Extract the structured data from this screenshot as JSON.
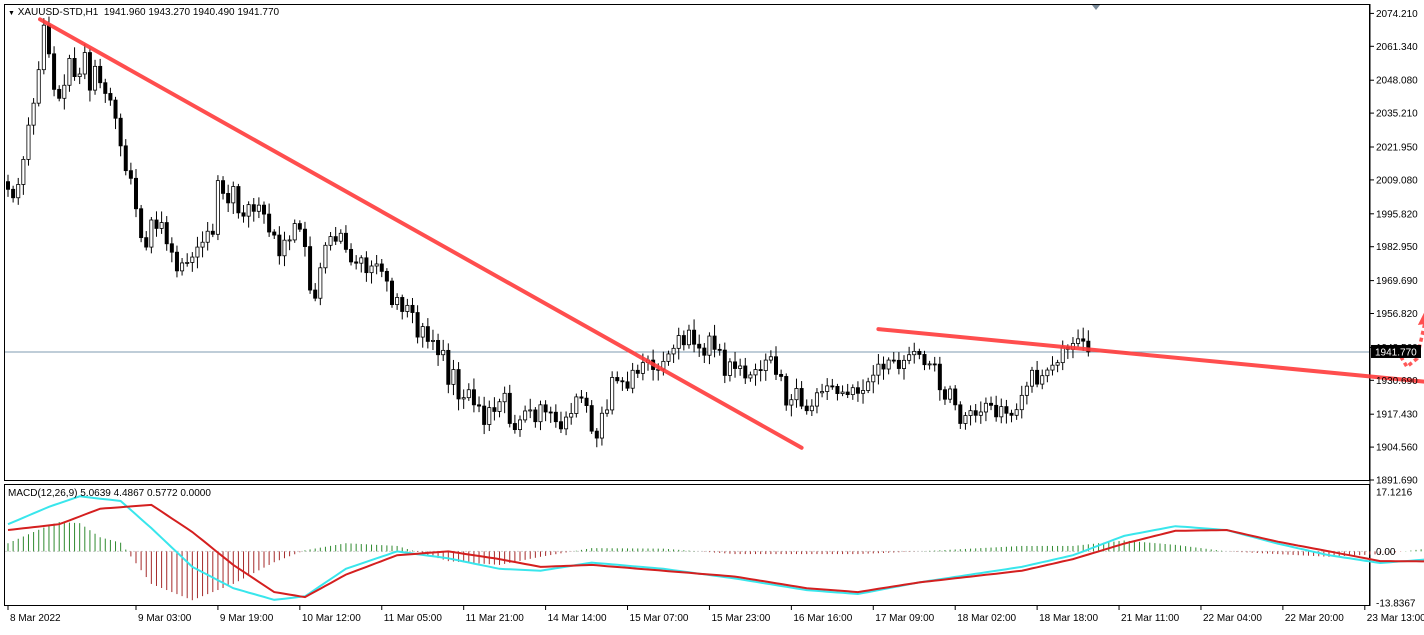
{
  "chart_data": [
    {
      "type": "candlestick",
      "header": {
        "symbol": "XAUUSD-STD,H1",
        "open": "1941.960",
        "high": "1943.270",
        "low": "1940.490",
        "close": "1941.770"
      },
      "current_price_label": "1941.770",
      "current_price": 1941.77,
      "ylim": [
        1891.69,
        2077.5
      ],
      "y_ticks": [
        "2074.210",
        "2061.340",
        "2048.080",
        "2035.210",
        "2021.950",
        "2009.080",
        "1995.820",
        "1982.950",
        "1969.690",
        "1956.820",
        "1943.560",
        "1930.690",
        "1917.430",
        "1904.560",
        "1891.690"
      ],
      "x_labels": [
        "8 Mar 2022",
        "9 Mar 03:00",
        "9 Mar 19:00",
        "10 Mar 12:00",
        "11 Mar 05:00",
        "11 Mar 21:00",
        "14 Mar 14:00",
        "15 Mar 07:00",
        "15 Mar 23:00",
        "16 Mar 16:00",
        "17 Mar 09:00",
        "18 Mar 02:00",
        "18 Mar 18:00",
        "21 Mar 11:00",
        "22 Mar 04:00",
        "22 Mar 20:00",
        "23 Mar 13:00"
      ],
      "closes": [
        2005.4,
        2002.1,
        2007.3,
        2017.1,
        2030.5,
        2039.1,
        2052.2,
        2069.6,
        2058.4,
        2044.5,
        2041.0,
        2046.1,
        2056.6,
        2049.5,
        2050.5,
        2058.9,
        2044.2,
        2053.5,
        2047.1,
        2042.9,
        2040.3,
        2033.2,
        2022.4,
        2012.7,
        2009.7,
        1997.8,
        1986.5,
        1982.8,
        1993.4,
        1990.1,
        1992.4,
        1984.1,
        1980.8,
        1973.5,
        1976.6,
        1976.8,
        1978.9,
        1982.8,
        1984.7,
        1989.0,
        1987.8,
        2008.8,
        2003.8,
        2000.1,
        2006.5,
        1996.2,
        1994.9,
        1999.4,
        1996.8,
        1999.2,
        1995.7,
        1988.7,
        1987.5,
        1979.4,
        1985.5,
        1985.6,
        1992.0,
        1989.8,
        1983.0,
        1966.0,
        1962.8,
        1974.7,
        1983.5,
        1986.9,
        1985.1,
        1988.2,
        1981.9,
        1977.0,
        1976.5,
        1978.6,
        1972.8,
        1975.4,
        1976.2,
        1973.3,
        1969.5,
        1960.3,
        1963.1,
        1957.6,
        1960.0,
        1957.2,
        1947.6,
        1951.7,
        1945.9,
        1946.3,
        1940.7,
        1942.4,
        1929.1,
        1934.9,
        1923.4,
        1923.9,
        1927.0,
        1921.1,
        1920.6,
        1913.4,
        1920.0,
        1918.5,
        1922.3,
        1925.6,
        1913.8,
        1911.4,
        1915.2,
        1918.7,
        1919.1,
        1914.5,
        1921.1,
        1918.3,
        1918.2,
        1914.5,
        1911.7,
        1916.3,
        1917.7,
        1924.2,
        1923.7,
        1920.8,
        1910.8,
        1908.1,
        1917.8,
        1919.1,
        1931.8,
        1930.5,
        1930.1,
        1927.6,
        1934.6,
        1933.4,
        1937.6,
        1938.6,
        1934.9,
        1935.0,
        1938.1,
        1941.0,
        1943.2,
        1948.2,
        1944.6,
        1950.3,
        1944.8,
        1943.3,
        1940.5,
        1948.0,
        1942.8,
        1942.5,
        1932.6,
        1937.9,
        1935.3,
        1936.3,
        1931.6,
        1932.8,
        1934.9,
        1934.5,
        1938.6,
        1939.9,
        1933.0,
        1932.2,
        1921.0,
        1923.1,
        1927.5,
        1920.6,
        1918.8,
        1920.6,
        1925.8,
        1926.3,
        1928.5,
        1928.3,
        1925.5,
        1926.1,
        1925.1,
        1927.8,
        1925.6,
        1926.7,
        1930.1,
        1932.7,
        1937.0,
        1935.1,
        1938.6,
        1938.5,
        1935.3,
        1938.5,
        1940.7,
        1942.0,
        1940.8,
        1936.8,
        1937.1,
        1937.0,
        1927.0,
        1923.3,
        1927.3,
        1921.1,
        1913.8,
        1916.9,
        1918.8,
        1917.0,
        1918.3,
        1921.7,
        1920.9,
        1916.4,
        1920.4,
        1917.8,
        1917.0,
        1919.2,
        1924.8,
        1928.4,
        1934.6,
        1929.2,
        1932.5,
        1934.7,
        1936.6,
        1937.6,
        1943.7,
        1942.8,
        1945.1,
        1946.9,
        1946.0,
        1941.8
      ],
      "downtrend_line": {
        "from": [
          "8 Mar 2022",
          2071.9
        ],
        "to": [
          "16 Mar 18:00",
          1904.3
        ]
      },
      "resistance_line": {
        "from": [
          "17 Mar 10:00",
          1950.7
        ],
        "to": [
          "24 Mar 04:00",
          1929.7
        ]
      },
      "projection_arrow": {
        "from": [
          "23 Mar 22:00",
          1936.0
        ],
        "to": [
          "23 Mar 23:00",
          1957.0
        ],
        "style": "dotted"
      },
      "colors": {
        "bull": "#000000",
        "bear": "#000000",
        "trend": "#ff3b3b",
        "price_line": "#7f9bb0"
      }
    },
    {
      "type": "macd",
      "label": "MACD(12,26,9) 5.0639 4.4867 0.5772 0.0000",
      "ylim": [
        -13.8367,
        17.1216
      ],
      "y_ticks": [
        "17.1216",
        "0.00",
        "-13.8367"
      ],
      "macd_line": [
        [
          0,
          7.0
        ],
        [
          8,
          11.5
        ],
        [
          14,
          14.2
        ],
        [
          22,
          13.0
        ],
        [
          28,
          6.0
        ],
        [
          36,
          -4.0
        ],
        [
          44,
          -9.5
        ],
        [
          52,
          -12.5
        ],
        [
          58,
          -11.6
        ],
        [
          66,
          -4.5
        ],
        [
          76,
          0.0
        ],
        [
          86,
          -1.8
        ],
        [
          96,
          -4.5
        ],
        [
          104,
          -5.0
        ],
        [
          114,
          -2.9
        ],
        [
          128,
          -4.5
        ],
        [
          142,
          -7.0
        ],
        [
          156,
          -10.0
        ],
        [
          166,
          -11.0
        ],
        [
          178,
          -8.0
        ],
        [
          188,
          -6.0
        ],
        [
          198,
          -4.0
        ],
        [
          208,
          -1.0
        ],
        [
          218,
          4.0
        ],
        [
          228,
          6.5
        ],
        [
          238,
          5.5
        ],
        [
          248,
          2.0
        ],
        [
          258,
          -1.0
        ],
        [
          268,
          -3.0
        ],
        [
          278,
          -2.0
        ],
        [
          288,
          0.0
        ],
        [
          298,
          1.0
        ],
        [
          308,
          1.5
        ],
        [
          318,
          0.5
        ],
        [
          328,
          -2.5
        ],
        [
          336,
          -3.0
        ],
        [
          344,
          -3.0
        ],
        [
          352,
          -2.0
        ],
        [
          360,
          0.0
        ],
        [
          368,
          2.5
        ],
        [
          374,
          5.5
        ],
        [
          380,
          5.3
        ]
      ],
      "signal_line": [
        [
          0,
          5.5
        ],
        [
          10,
          7.0
        ],
        [
          18,
          11.0
        ],
        [
          28,
          12.0
        ],
        [
          36,
          5.0
        ],
        [
          44,
          -3.5
        ],
        [
          52,
          -10.5
        ],
        [
          58,
          -11.8
        ],
        [
          66,
          -6.0
        ],
        [
          76,
          -1.0
        ],
        [
          86,
          0.0
        ],
        [
          96,
          -2.0
        ],
        [
          104,
          -4.0
        ],
        [
          114,
          -3.5
        ],
        [
          128,
          -5.0
        ],
        [
          142,
          -6.5
        ],
        [
          156,
          -9.5
        ],
        [
          166,
          -10.5
        ],
        [
          178,
          -8.0
        ],
        [
          188,
          -6.5
        ],
        [
          198,
          -5.0
        ],
        [
          208,
          -2.0
        ],
        [
          218,
          2.0
        ],
        [
          228,
          5.3
        ],
        [
          238,
          5.5
        ],
        [
          248,
          2.5
        ],
        [
          258,
          0.0
        ],
        [
          268,
          -2.5
        ],
        [
          278,
          -2.6
        ],
        [
          288,
          -0.5
        ],
        [
          298,
          1.0
        ],
        [
          308,
          1.5
        ],
        [
          318,
          1.0
        ],
        [
          328,
          -1.5
        ],
        [
          336,
          -2.8
        ],
        [
          344,
          -3.0
        ],
        [
          352,
          -2.2
        ],
        [
          360,
          -0.5
        ],
        [
          368,
          1.5
        ],
        [
          374,
          4.0
        ],
        [
          380,
          4.5
        ]
      ],
      "colors": {
        "macd": "#39e6ec",
        "signal": "#d41f1f",
        "hist_pos": "#2f8a2f",
        "hist_neg": "#a52a2a",
        "zero_line": "#d0d0d0"
      }
    }
  ]
}
